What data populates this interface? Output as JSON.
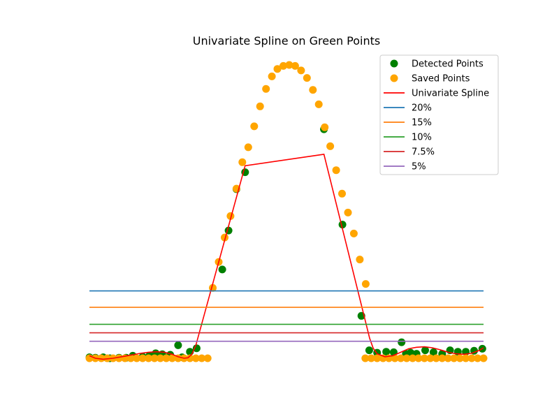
{
  "chart_data": {
    "type": "scatter",
    "title": "Univariate Spline on Green Points",
    "xlabel": "",
    "ylabel": "",
    "axes_visible": false,
    "legend_placement": "top-right",
    "xlim": [
      0,
      100
    ],
    "ylim": [
      -3,
      75
    ],
    "series": [
      {
        "name": "Detected Points",
        "kind": "scatter",
        "color": "#008000",
        "points": [
          [
            0.0,
            0.2
          ],
          [
            1.5,
            0.1
          ],
          [
            3.5,
            0.2
          ],
          [
            5.2,
            0.0
          ],
          [
            7.5,
            0.1
          ],
          [
            9.3,
            0.1
          ],
          [
            11.0,
            0.5
          ],
          [
            13.5,
            0.3
          ],
          [
            15.2,
            0.5
          ],
          [
            16.8,
            1.0
          ],
          [
            18.5,
            0.8
          ],
          [
            20.5,
            0.7
          ],
          [
            22.5,
            2.6
          ],
          [
            23.5,
            0.2
          ],
          [
            25.5,
            1.3
          ],
          [
            27.2,
            2.0
          ],
          [
            33.7,
            17.8
          ],
          [
            35.3,
            25.6
          ],
          [
            37.3,
            33.9
          ],
          [
            39.5,
            37.3
          ],
          [
            59.5,
            45.9
          ],
          [
            64.2,
            26.8
          ],
          [
            69.0,
            8.5
          ],
          [
            71.0,
            1.6
          ],
          [
            73.0,
            1.1
          ],
          [
            75.3,
            1.3
          ],
          [
            77.2,
            1.2
          ],
          [
            79.2,
            3.2
          ],
          [
            80.3,
            0.9
          ],
          [
            81.5,
            1.1
          ],
          [
            83.0,
            0.9
          ],
          [
            85.2,
            1.6
          ],
          [
            87.3,
            1.2
          ],
          [
            89.5,
            0.9
          ],
          [
            91.5,
            1.6
          ],
          [
            93.5,
            1.3
          ],
          [
            95.5,
            1.3
          ],
          [
            97.6,
            1.5
          ],
          [
            99.7,
            1.9
          ]
        ]
      },
      {
        "name": "Saved Points",
        "kind": "scatter",
        "color": "#FFA500",
        "points": [
          [
            0.0,
            0.0
          ],
          [
            1.5,
            0.0
          ],
          [
            3.0,
            0.0
          ],
          [
            4.5,
            0.0
          ],
          [
            6.0,
            0.0
          ],
          [
            7.5,
            0.0
          ],
          [
            9.0,
            0.0
          ],
          [
            10.5,
            0.0
          ],
          [
            12.0,
            0.0
          ],
          [
            13.5,
            0.0
          ],
          [
            15.0,
            0.0
          ],
          [
            16.5,
            0.0
          ],
          [
            18.0,
            0.0
          ],
          [
            19.5,
            0.0
          ],
          [
            21.0,
            0.0
          ],
          [
            22.5,
            0.0
          ],
          [
            24.0,
            0.0
          ],
          [
            25.5,
            0.0
          ],
          [
            27.0,
            0.0
          ],
          [
            28.5,
            0.0
          ],
          [
            30.0,
            0.0
          ],
          [
            31.3,
            14.1
          ],
          [
            32.8,
            19.3
          ],
          [
            34.3,
            24.2
          ],
          [
            35.8,
            28.5
          ],
          [
            37.3,
            34.0
          ],
          [
            38.8,
            39.3
          ],
          [
            40.3,
            42.3
          ],
          [
            41.8,
            46.5
          ],
          [
            43.3,
            50.5
          ],
          [
            44.8,
            54.0
          ],
          [
            46.3,
            56.5
          ],
          [
            47.7,
            58.0
          ],
          [
            49.2,
            58.6
          ],
          [
            50.7,
            58.8
          ],
          [
            52.2,
            58.6
          ],
          [
            53.7,
            57.7
          ],
          [
            55.2,
            56.2
          ],
          [
            56.7,
            53.8
          ],
          [
            58.2,
            50.9
          ],
          [
            59.7,
            46.3
          ],
          [
            61.1,
            42.5
          ],
          [
            62.6,
            37.7
          ],
          [
            64.1,
            33.0
          ],
          [
            65.6,
            29.2
          ],
          [
            67.1,
            25.0
          ],
          [
            68.6,
            19.8
          ],
          [
            70.1,
            14.9
          ],
          [
            70.0,
            0.0
          ],
          [
            71.5,
            0.0
          ],
          [
            73.0,
            0.0
          ],
          [
            74.5,
            0.0
          ],
          [
            76.0,
            0.0
          ],
          [
            77.5,
            0.0
          ],
          [
            79.0,
            0.0
          ],
          [
            80.5,
            0.0
          ],
          [
            82.0,
            0.0
          ],
          [
            83.5,
            0.0
          ],
          [
            85.0,
            0.0
          ],
          [
            86.5,
            0.0
          ],
          [
            88.0,
            0.0
          ],
          [
            89.5,
            0.0
          ],
          [
            91.0,
            0.0
          ],
          [
            92.5,
            0.0
          ],
          [
            94.0,
            0.0
          ],
          [
            95.5,
            0.0
          ],
          [
            97.0,
            0.0
          ],
          [
            98.5,
            0.0
          ],
          [
            100.0,
            0.0
          ]
        ]
      },
      {
        "name": "Univariate Spline",
        "kind": "line",
        "color": "#FF0000",
        "points": [
          [
            0,
            0.5
          ],
          [
            1.5,
            0.0
          ],
          [
            3.5,
            -0.2
          ],
          [
            6,
            0.0
          ],
          [
            9,
            0.4
          ],
          [
            11,
            0.7
          ],
          [
            13,
            1.0
          ],
          [
            15,
            1.2
          ],
          [
            17,
            1.3
          ],
          [
            19,
            1.2
          ],
          [
            21,
            0.8
          ],
          [
            22.5,
            0.3
          ],
          [
            24,
            0.0
          ],
          [
            25,
            0.1
          ],
          [
            26,
            0.8
          ],
          [
            27,
            2.6
          ],
          [
            39.5,
            38.6
          ],
          [
            59.5,
            40.9
          ],
          [
            71.1,
            4.0
          ],
          [
            72,
            2.0
          ],
          [
            73,
            0.9
          ],
          [
            75,
            0.3
          ],
          [
            77,
            0.5
          ],
          [
            79,
            1.2
          ],
          [
            81,
            1.9
          ],
          [
            83,
            2.2
          ],
          [
            85,
            2.3
          ],
          [
            87,
            2.1
          ],
          [
            89,
            1.7
          ],
          [
            91,
            1.2
          ],
          [
            93,
            0.9
          ],
          [
            95,
            0.8
          ],
          [
            97,
            1.0
          ],
          [
            99,
            1.6
          ],
          [
            100,
            2.1
          ]
        ]
      },
      {
        "name": "20%",
        "kind": "hline",
        "color": "#1f77b4",
        "y": 13.5
      },
      {
        "name": "15%",
        "kind": "hline",
        "color": "#ff7f0e",
        "y": 10.2
      },
      {
        "name": "10%",
        "kind": "hline",
        "color": "#2ca02c",
        "y": 6.8
      },
      {
        "name": "7.5%",
        "kind": "hline",
        "color": "#d62728",
        "y": 5.1
      },
      {
        "name": "5%",
        "kind": "hline",
        "color": "#9467bd",
        "y": 3.4
      }
    ]
  }
}
